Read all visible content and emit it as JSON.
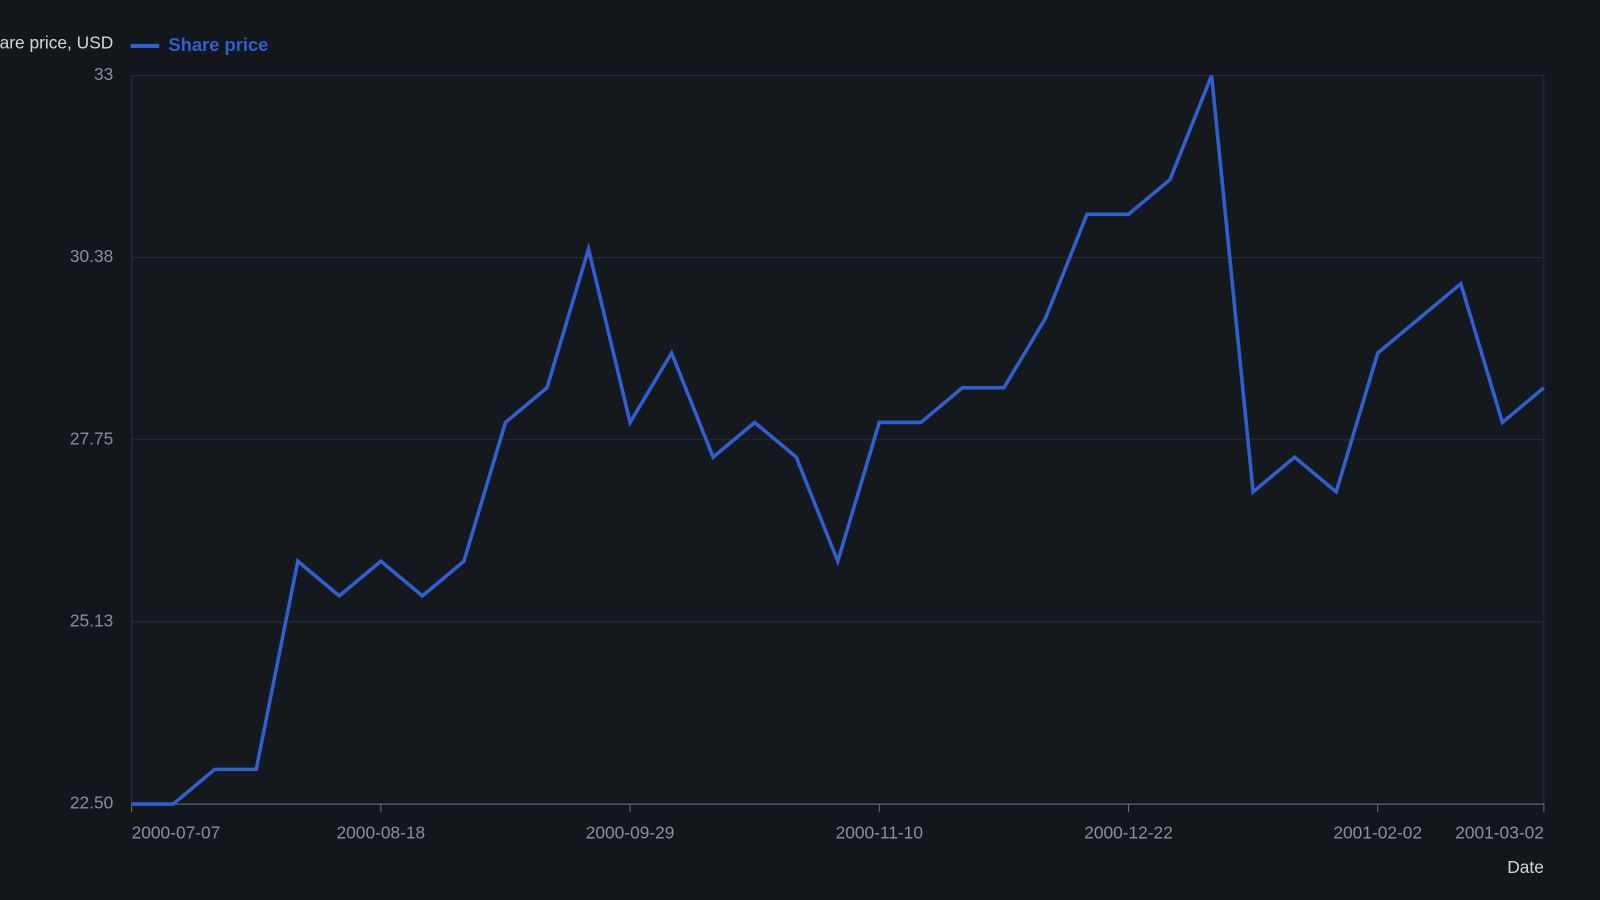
{
  "chart_data": {
    "type": "line",
    "ylabel": "Share price, USD",
    "xlabel": "Date",
    "x": [
      "2000-07-07",
      "2000-07-14",
      "2000-07-21",
      "2000-07-28",
      "2000-08-04",
      "2000-08-11",
      "2000-08-18",
      "2000-08-25",
      "2000-09-01",
      "2000-09-08",
      "2000-09-15",
      "2000-09-22",
      "2000-09-29",
      "2000-10-06",
      "2000-10-13",
      "2000-10-20",
      "2000-10-27",
      "2000-11-03",
      "2000-11-10",
      "2000-11-17",
      "2000-11-24",
      "2000-12-01",
      "2000-12-08",
      "2000-12-15",
      "2000-12-22",
      "2000-12-29",
      "2001-01-05",
      "2001-01-12",
      "2001-01-19",
      "2001-01-26",
      "2001-02-02",
      "2001-02-09",
      "2001-02-16",
      "2001-02-23",
      "2001-03-02"
    ],
    "series": [
      {
        "name": "Share price",
        "color": "#2f5fd0",
        "values": [
          22.5,
          22.5,
          23,
          23,
          26,
          25.5,
          26,
          25.5,
          26,
          28,
          28.5,
          30.5,
          28,
          29,
          27.5,
          28,
          27.5,
          26,
          28,
          28,
          28.5,
          28.5,
          29.5,
          31,
          31,
          31.5,
          33,
          27,
          27.5,
          27,
          29,
          29.5,
          30,
          28,
          28.5
        ]
      }
    ],
    "xlim": [
      "2000-07-07",
      "2001-03-02"
    ],
    "xticks": [
      "2000-07-07",
      "2000-08-18",
      "2000-09-29",
      "2000-11-10",
      "2000-12-22",
      "2001-02-02",
      "2001-03-02"
    ],
    "ylim": [
      22.5,
      33
    ],
    "yticks": [
      {
        "value": 22.5,
        "label": "22.50"
      },
      {
        "value": 25.125,
        "label": "25.13"
      },
      27.75,
      {
        "value": 30.375,
        "label": "30.38"
      },
      33
    ],
    "grid": true,
    "legend": "top"
  }
}
